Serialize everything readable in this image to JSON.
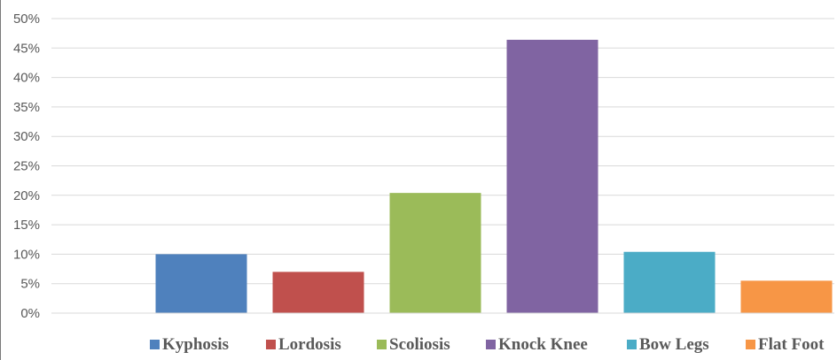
{
  "chart_data": {
    "type": "bar",
    "categories": [
      "Kyphosis",
      "Lordosis",
      "Scoliosis",
      "Knock Knee",
      "Bow Legs",
      "Flat Foot"
    ],
    "values": [
      10,
      7,
      20.4,
      46.4,
      10.4,
      5.5
    ],
    "colors": [
      "#4F81BD",
      "#C0504D",
      "#9BBB59",
      "#8064A2",
      "#4BACC6",
      "#F79646"
    ],
    "y_ticks": [
      "0%",
      "5%",
      "10%",
      "15%",
      "20%",
      "25%",
      "30%",
      "35%",
      "40%",
      "45%",
      "50%"
    ],
    "ylim": [
      0,
      50
    ],
    "y_unit": "%",
    "grid": true,
    "legend_position": "bottom",
    "title": "",
    "xlabel": "",
    "ylabel": ""
  }
}
